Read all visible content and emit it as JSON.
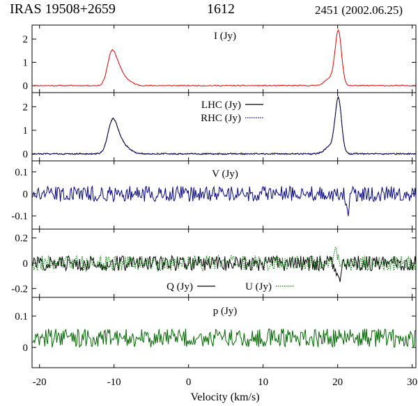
{
  "header": {
    "source": "IRAS 19508+2659",
    "line": "1612",
    "epoch": "2451 (2002.06.25)"
  },
  "chart_data": [
    {
      "type": "line",
      "title": "I (Jy)",
      "ylim": [
        -0.3,
        2.6
      ],
      "yticks": [
        0,
        1,
        2
      ],
      "ytick_labels": [
        "0",
        "1",
        "2"
      ],
      "xlim": [
        -21,
        30.5
      ],
      "series": [
        {
          "name": "I (Jy)",
          "color": "#dd0000",
          "style": "solid",
          "shape": {
            "noise": 0.022,
            "seed": 11,
            "peaks": [
              {
                "x": -10.4,
                "amp": 1.0,
                "w": 0.55
              },
              {
                "x": -9.7,
                "amp": 0.7,
                "w": 0.7
              },
              {
                "x": -8.6,
                "amp": 0.25,
                "w": 0.9
              },
              {
                "x": 20.1,
                "amp": 2.2,
                "w": 0.42
              },
              {
                "x": 19.2,
                "amp": 0.35,
                "w": 0.8
              }
            ]
          }
        }
      ]
    },
    {
      "type": "line",
      "title": "LHC (Jy)",
      "ylim": [
        -0.3,
        2.6
      ],
      "yticks": [
        0,
        1,
        2
      ],
      "ytick_labels": [
        "0",
        "1",
        "2"
      ],
      "xlim": [
        -21,
        30.5
      ],
      "legend": [
        {
          "label": "LHC (Jy)",
          "color": "#000000",
          "style": "solid"
        },
        {
          "label": "RHC (Jy)",
          "color": "#000080",
          "style": "dotted"
        }
      ],
      "series": [
        {
          "name": "LHC (Jy)",
          "color": "#000000",
          "style": "solid",
          "shape": {
            "noise": 0.03,
            "seed": 21,
            "peaks": [
              {
                "x": -10.3,
                "amp": 1.1,
                "w": 0.6
              },
              {
                "x": -9.6,
                "amp": 0.5,
                "w": 0.7
              },
              {
                "x": -8.6,
                "amp": 0.25,
                "w": 0.9
              },
              {
                "x": 20.1,
                "amp": 2.2,
                "w": 0.42
              },
              {
                "x": 19.2,
                "amp": 0.35,
                "w": 0.8
              }
            ]
          }
        },
        {
          "name": "RHC (Jy)",
          "color": "#000080",
          "style": "dotted",
          "shape": {
            "noise": 0.03,
            "seed": 33,
            "peaks": [
              {
                "x": -10.3,
                "amp": 1.1,
                "w": 0.6
              },
              {
                "x": -9.6,
                "amp": 0.5,
                "w": 0.7
              },
              {
                "x": -8.6,
                "amp": 0.25,
                "w": 0.9
              },
              {
                "x": 20.1,
                "amp": 2.2,
                "w": 0.42
              },
              {
                "x": 19.2,
                "amp": 0.35,
                "w": 0.8
              }
            ]
          }
        }
      ]
    },
    {
      "type": "line",
      "title": "V (Jy)",
      "ylim": [
        -0.16,
        0.15
      ],
      "yticks": [
        0.1,
        0,
        -0.1
      ],
      "ytick_labels": [
        "0.1",
        "0",
        "-0.1"
      ],
      "xlim": [
        -21,
        30.5
      ],
      "series": [
        {
          "name": "V (Jy)",
          "color": "#000080",
          "style": "solid",
          "shape": {
            "noise": 0.035,
            "seed": 45,
            "peaks": [
              {
                "x": 21.3,
                "amp": -0.09,
                "w": 0.2
              }
            ]
          }
        }
      ]
    },
    {
      "type": "line",
      "title": "Q (Jy) / U (Jy)",
      "ylim": [
        -0.27,
        0.27
      ],
      "yticks": [
        0.2,
        0,
        -0.2
      ],
      "ytick_labels": [
        "0.2",
        "0",
        "-0.2"
      ],
      "xlim": [
        -21,
        30.5
      ],
      "legend": [
        {
          "label": "Q (Jy)",
          "color": "#000000",
          "style": "solid"
        },
        {
          "label": "U (Jy)",
          "color": "#007700",
          "style": "dotted"
        }
      ],
      "series": [
        {
          "name": "Q (Jy)",
          "color": "#000000",
          "style": "solid",
          "shape": {
            "noise": 0.06,
            "seed": 57,
            "peaks": [
              {
                "x": 20.1,
                "amp": -0.15,
                "w": 0.3
              }
            ]
          }
        },
        {
          "name": "U (Jy)",
          "color": "#007700",
          "style": "dotted",
          "shape": {
            "noise": 0.06,
            "seed": 69,
            "peaks": [
              {
                "x": 19.8,
                "amp": 0.1,
                "w": 0.3
              }
            ]
          }
        }
      ]
    },
    {
      "type": "line",
      "title": "p (Jy)",
      "ylim": [
        -0.065,
        0.16
      ],
      "yticks": [
        0.1,
        0
      ],
      "ytick_labels": [
        "0.1",
        "0"
      ],
      "xlim": [
        -21,
        30.5
      ],
      "xticks": [
        -20,
        -10,
        0,
        10,
        20,
        30
      ],
      "xtick_labels": [
        "-20",
        "-10",
        "0",
        "10",
        "20",
        "30"
      ],
      "xlabel": "Velocity (km/s)",
      "series": [
        {
          "name": "p (Jy)",
          "color": "#006600",
          "style": "solid",
          "shape": {
            "noise": 0.03,
            "seed": 81,
            "offset": 0.03,
            "peaks": []
          }
        }
      ]
    }
  ]
}
